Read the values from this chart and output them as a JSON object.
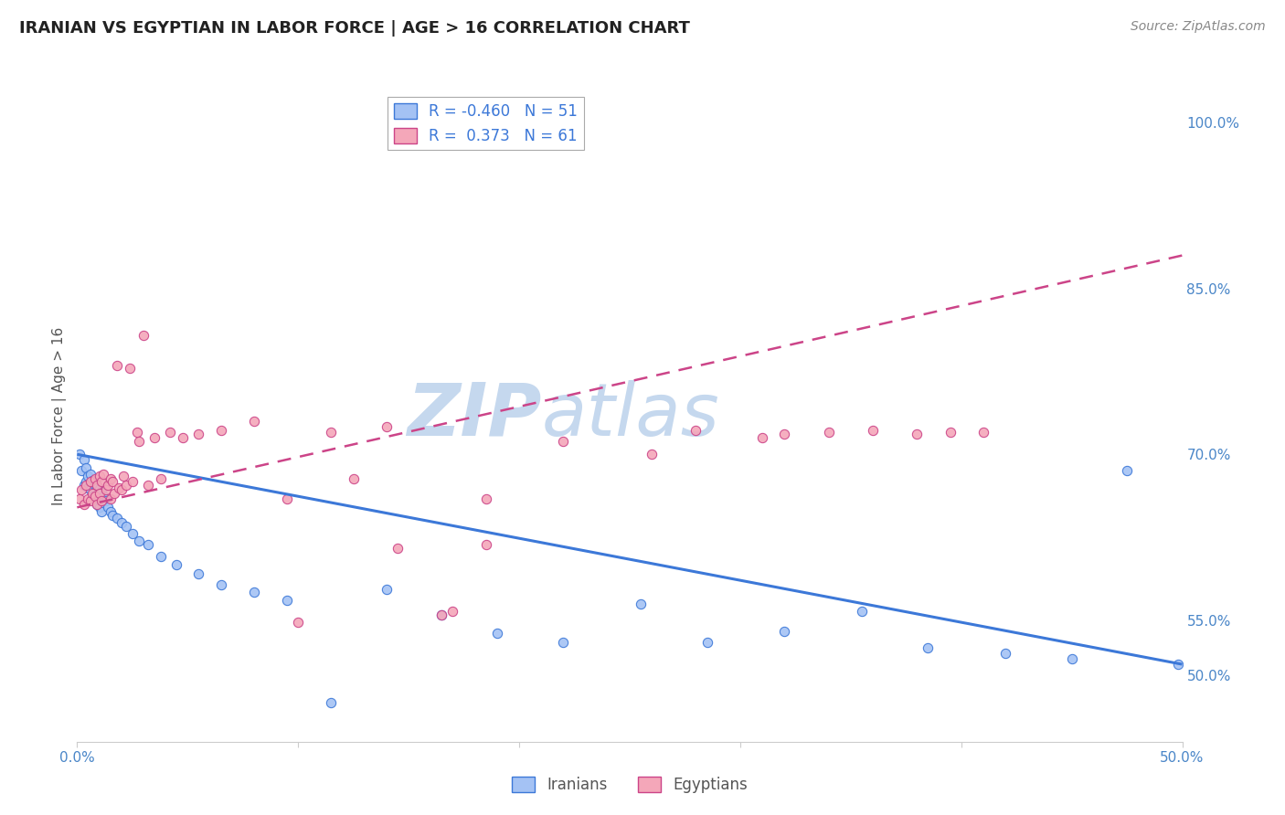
{
  "title": "IRANIAN VS EGYPTIAN IN LABOR FORCE | AGE > 16 CORRELATION CHART",
  "source": "Source: ZipAtlas.com",
  "ylabel": "In Labor Force | Age > 16",
  "x_min": 0.0,
  "x_max": 0.5,
  "y_min": 0.44,
  "y_max": 1.03,
  "x_ticks": [
    0.0,
    0.1,
    0.2,
    0.3,
    0.4,
    0.5
  ],
  "x_tick_labels": [
    "0.0%",
    "",
    "",
    "",
    "",
    "50.0%"
  ],
  "y_ticks": [
    0.5,
    0.55,
    0.6,
    0.65,
    0.7,
    0.75,
    0.8,
    0.85,
    0.9,
    0.95,
    1.0
  ],
  "y_tick_labels": [
    "50.0%",
    "55.0%",
    "",
    "",
    "70.0%",
    "",
    "",
    "85.0%",
    "",
    "",
    "100.0%"
  ],
  "iranians_R": -0.46,
  "iranians_N": 51,
  "egyptians_R": 0.373,
  "egyptians_N": 61,
  "color_iranians": "#a4c2f4",
  "color_egyptians": "#f4a7b9",
  "color_iranians_line": "#3c78d8",
  "color_egyptians_line": "#cc4488",
  "watermark_zip": "ZIP",
  "watermark_atlas": "atlas",
  "watermark_color_zip": "#c5d8ee",
  "watermark_color_atlas": "#c5d8ee",
  "iranians_x": [
    0.001,
    0.002,
    0.003,
    0.003,
    0.004,
    0.004,
    0.005,
    0.005,
    0.006,
    0.006,
    0.007,
    0.007,
    0.008,
    0.008,
    0.009,
    0.009,
    0.01,
    0.01,
    0.011,
    0.011,
    0.012,
    0.013,
    0.014,
    0.015,
    0.016,
    0.018,
    0.02,
    0.022,
    0.025,
    0.028,
    0.032,
    0.038,
    0.045,
    0.055,
    0.065,
    0.08,
    0.095,
    0.115,
    0.14,
    0.165,
    0.19,
    0.22,
    0.255,
    0.285,
    0.32,
    0.355,
    0.385,
    0.42,
    0.45,
    0.475,
    0.498
  ],
  "iranians_y": [
    0.7,
    0.685,
    0.695,
    0.672,
    0.688,
    0.675,
    0.68,
    0.67,
    0.682,
    0.668,
    0.676,
    0.662,
    0.672,
    0.658,
    0.671,
    0.655,
    0.669,
    0.652,
    0.666,
    0.648,
    0.662,
    0.658,
    0.652,
    0.648,
    0.645,
    0.642,
    0.638,
    0.635,
    0.628,
    0.622,
    0.618,
    0.608,
    0.6,
    0.592,
    0.582,
    0.575,
    0.568,
    0.475,
    0.578,
    0.555,
    0.538,
    0.53,
    0.565,
    0.53,
    0.54,
    0.558,
    0.525,
    0.52,
    0.515,
    0.685,
    0.51
  ],
  "egyptians_x": [
    0.001,
    0.002,
    0.003,
    0.004,
    0.005,
    0.006,
    0.006,
    0.007,
    0.008,
    0.008,
    0.009,
    0.009,
    0.01,
    0.01,
    0.011,
    0.011,
    0.012,
    0.013,
    0.014,
    0.015,
    0.015,
    0.016,
    0.017,
    0.018,
    0.019,
    0.02,
    0.021,
    0.022,
    0.024,
    0.025,
    0.027,
    0.028,
    0.03,
    0.032,
    0.035,
    0.038,
    0.042,
    0.048,
    0.055,
    0.065,
    0.08,
    0.095,
    0.115,
    0.14,
    0.165,
    0.185,
    0.28,
    0.32,
    0.34,
    0.36,
    0.38,
    0.395,
    0.41,
    0.31,
    0.26,
    0.22,
    0.185,
    0.17,
    0.145,
    0.125,
    0.1
  ],
  "egyptians_y": [
    0.66,
    0.668,
    0.655,
    0.672,
    0.66,
    0.675,
    0.658,
    0.665,
    0.678,
    0.662,
    0.672,
    0.655,
    0.68,
    0.665,
    0.675,
    0.658,
    0.682,
    0.668,
    0.672,
    0.66,
    0.678,
    0.675,
    0.665,
    0.78,
    0.67,
    0.668,
    0.68,
    0.672,
    0.778,
    0.675,
    0.72,
    0.712,
    0.808,
    0.672,
    0.715,
    0.678,
    0.72,
    0.715,
    0.718,
    0.722,
    0.73,
    0.66,
    0.72,
    0.725,
    0.555,
    0.618,
    0.722,
    0.718,
    0.72,
    0.722,
    0.718,
    0.72,
    0.72,
    0.715,
    0.7,
    0.712,
    0.66,
    0.558,
    0.615,
    0.678,
    0.548
  ]
}
